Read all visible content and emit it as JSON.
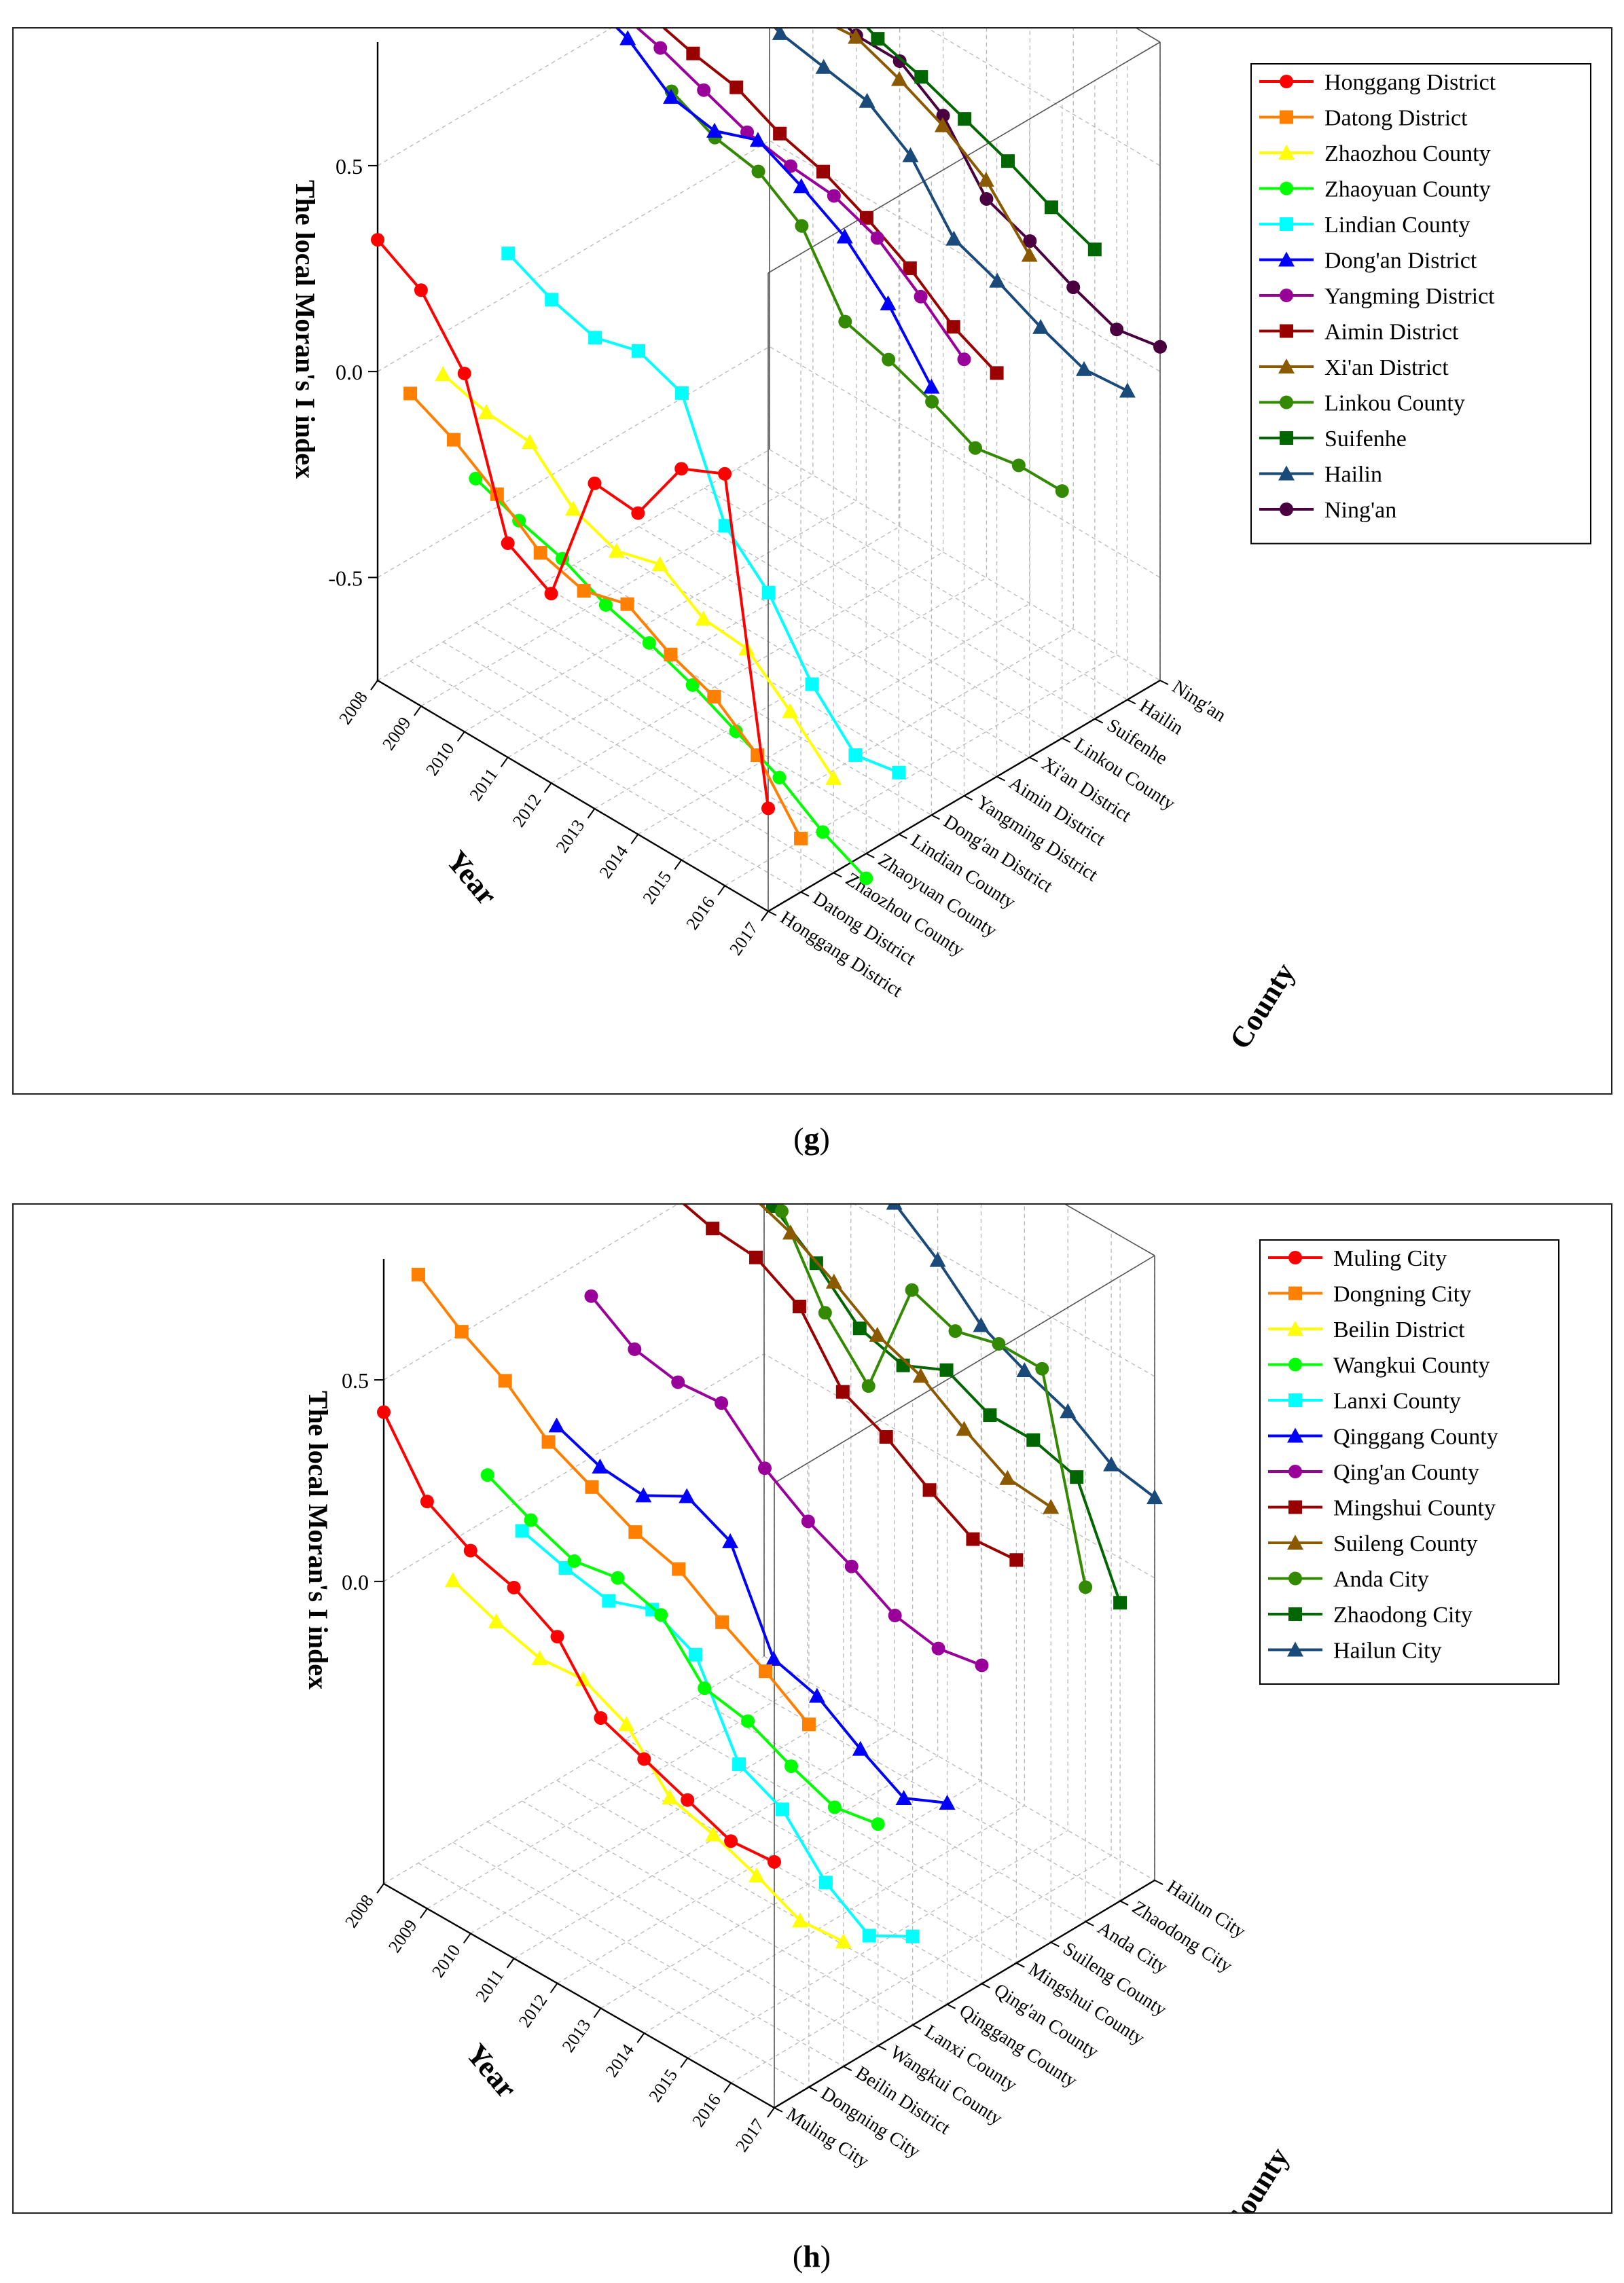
{
  "figure": {
    "captions": [
      "(g)",
      "(h)"
    ],
    "caption_bold_letters": [
      "g",
      "h"
    ]
  },
  "chart_data": [
    {
      "type": "line",
      "panel": "g",
      "title": "",
      "zlabel": "The local Moran's I index",
      "xlabel": "Year",
      "ylabel": "County",
      "x": [
        2008,
        2009,
        2010,
        2011,
        2012,
        2013,
        2014,
        2015,
        2016,
        2017
      ],
      "years_shown": [
        2008,
        2009,
        2010,
        2011,
        2012,
        2013,
        2014,
        2015,
        2016,
        2017
      ],
      "zlim": [
        -0.75,
        0.8
      ],
      "z_ticks": [
        "0.5",
        "0.0",
        "-0.5"
      ],
      "z_tick_values": [
        0.5,
        0.0,
        -0.5
      ],
      "legend_position": "top-right",
      "series": [
        {
          "name": "Honggang District",
          "color": "#ff0000",
          "marker": "circle",
          "values": [
            0.32,
            0.26,
            0.12,
            -0.23,
            -0.29,
            0.04,
            0.03,
            0.2,
            0.25,
            -0.5
          ]
        },
        {
          "name": "Datong District",
          "color": "#ff8000",
          "marker": "square",
          "values": [
            -0.1,
            -0.15,
            -0.22,
            -0.3,
            -0.33,
            -0.3,
            -0.36,
            -0.4,
            -0.48,
            -0.62
          ]
        },
        {
          "name": "Zhaozhou County",
          "color": "#ffff00",
          "marker": "triangle",
          "values": [
            -0.1,
            -0.13,
            -0.14,
            -0.24,
            -0.28,
            -0.25,
            -0.32,
            -0.33,
            -0.42,
            -0.52
          ]
        },
        {
          "name": "Zhaoyuan County",
          "color": "#00ff00",
          "marker": "circle",
          "values": [
            -0.4,
            -0.44,
            -0.47,
            -0.52,
            -0.55,
            -0.59,
            -0.64,
            -0.69,
            -0.76,
            -0.81
          ]
        },
        {
          "name": "Lindian County",
          "color": "#00ffff",
          "marker": "square",
          "values": [
            0.1,
            0.05,
            0.02,
            0.05,
            0.01,
            -0.25,
            -0.35,
            -0.51,
            -0.62,
            -0.6
          ]
        },
        {
          "name": "Dong'an District",
          "color": "#0000ff",
          "marker": "triangle",
          "values": [
            0.78,
            0.74,
            0.7,
            0.62,
            0.6,
            0.64,
            0.59,
            0.53,
            0.43,
            0.29
          ]
        },
        {
          "name": "Yangming District",
          "color": "#990099",
          "marker": "circle",
          "values": [
            0.7,
            0.66,
            0.63,
            0.59,
            0.55,
            0.53,
            0.52,
            0.48,
            0.4,
            0.31
          ]
        },
        {
          "name": "Aimin District",
          "color": "#990000",
          "marker": "square",
          "values": [
            0.64,
            0.6,
            0.57,
            0.55,
            0.5,
            0.47,
            0.42,
            0.36,
            0.28,
            0.23
          ]
        },
        {
          "name": "Xi'an District",
          "color": "#8b5a00",
          "marker": "triangle",
          "values": [
            0.88,
            0.86,
            0.82,
            0.76,
            0.74,
            0.75,
            0.71,
            0.66,
            0.59,
            0.47
          ]
        },
        {
          "name": "Linkou County",
          "color": "#338a00",
          "marker": "circle",
          "values": [
            0.26,
            0.21,
            0.19,
            0.12,
            -0.05,
            -0.08,
            -0.12,
            -0.17,
            -0.15,
            -0.15
          ]
        },
        {
          "name": "Suifenhe",
          "color": "#006600",
          "marker": "square",
          "values": [
            0.76,
            0.71,
            0.68,
            0.64,
            0.59,
            0.56,
            0.52,
            0.48,
            0.43,
            0.39
          ]
        },
        {
          "name": "Hailin",
          "color": "#1a4a7a",
          "marker": "triangle",
          "values": [
            0.42,
            0.37,
            0.35,
            0.33,
            0.26,
            0.12,
            0.08,
            0.03,
            -0.01,
            0.0
          ]
        },
        {
          "name": "Ning'an",
          "color": "#4a0040",
          "marker": "circle",
          "values": [
            0.46,
            0.42,
            0.38,
            0.38,
            0.31,
            0.17,
            0.13,
            0.08,
            0.04,
            0.06
          ]
        }
      ]
    },
    {
      "type": "line",
      "panel": "h",
      "title": "",
      "zlabel": "The local Moran's I index",
      "xlabel": "Year",
      "ylabel": "County",
      "x": [
        2008,
        2009,
        2010,
        2011,
        2012,
        2013,
        2014,
        2015,
        2016,
        2017
      ],
      "years_shown": [
        2008,
        2009,
        2010,
        2011,
        2012,
        2013,
        2014,
        2015,
        2016,
        2017
      ],
      "zlim": [
        -0.75,
        0.8
      ],
      "z_ticks": [
        "0.5",
        "0.0"
      ],
      "z_tick_values": [
        0.5,
        0.0
      ],
      "legend_position": "top-right",
      "series": [
        {
          "name": "Muling City",
          "color": "#ff0000",
          "marker": "circle",
          "values": [
            0.42,
            0.26,
            0.2,
            0.17,
            0.11,
            -0.03,
            -0.07,
            -0.11,
            -0.15,
            -0.14
          ]
        },
        {
          "name": "Dongning City",
          "color": "#ff8000",
          "marker": "square",
          "values": [
            0.71,
            0.63,
            0.57,
            0.48,
            0.43,
            0.38,
            0.35,
            0.28,
            0.22,
            0.15
          ]
        },
        {
          "name": "Beilin District",
          "color": "#ffff00",
          "marker": "triangle",
          "values": [
            -0.1,
            -0.14,
            -0.17,
            -0.16,
            -0.21,
            -0.33,
            -0.36,
            -0.4,
            -0.45,
            -0.44
          ]
        },
        {
          "name": "Wangkui County",
          "color": "#00ff00",
          "marker": "circle",
          "values": [
            0.11,
            0.06,
            0.02,
            0.04,
            0.01,
            -0.11,
            -0.13,
            -0.18,
            -0.22,
            -0.2
          ]
        },
        {
          "name": "Lanxi County",
          "color": "#00ffff",
          "marker": "square",
          "values": [
            -0.08,
            -0.11,
            -0.13,
            -0.09,
            -0.14,
            -0.35,
            -0.4,
            -0.52,
            -0.59,
            -0.53
          ]
        },
        {
          "name": "Qinggang County",
          "color": "#0000ff",
          "marker": "triangle",
          "values": [
            0.13,
            0.09,
            0.08,
            0.14,
            0.09,
            -0.14,
            -0.17,
            -0.24,
            -0.3,
            -0.25
          ]
        },
        {
          "name": "Qing'an County",
          "color": "#990099",
          "marker": "circle",
          "values": [
            0.4,
            0.33,
            0.31,
            0.32,
            0.22,
            0.15,
            0.1,
            0.04,
            0.02,
            0.04
          ]
        },
        {
          "name": "Mingshui County",
          "color": "#990000",
          "marker": "square",
          "values": [
            0.72,
            0.67,
            0.64,
            0.63,
            0.57,
            0.42,
            0.37,
            0.3,
            0.24,
            0.25
          ]
        },
        {
          "name": "Suileng County",
          "color": "#8b5a00",
          "marker": "triangle",
          "values": [
            0.8,
            0.7,
            0.68,
            0.64,
            0.58,
            0.51,
            0.47,
            0.4,
            0.34,
            0.33
          ]
        },
        {
          "name": "Anda City",
          "color": "#338a00",
          "marker": "circle",
          "values": [
            0.76,
            0.71,
            0.58,
            0.39,
            0.27,
            0.57,
            0.53,
            0.56,
            0.56,
            0.08
          ]
        },
        {
          "name": "Zhaodong City",
          "color": "#006600",
          "marker": "square",
          "values": [
            0.54,
            0.48,
            0.4,
            0.3,
            0.27,
            0.32,
            0.27,
            0.27,
            0.24,
            -0.01
          ]
        },
        {
          "name": "Hailun City",
          "color": "#1a4a7a",
          "marker": "triangle",
          "values": [
            0.67,
            0.6,
            0.58,
            0.56,
            0.48,
            0.38,
            0.33,
            0.29,
            0.22,
            0.2
          ]
        }
      ]
    }
  ]
}
